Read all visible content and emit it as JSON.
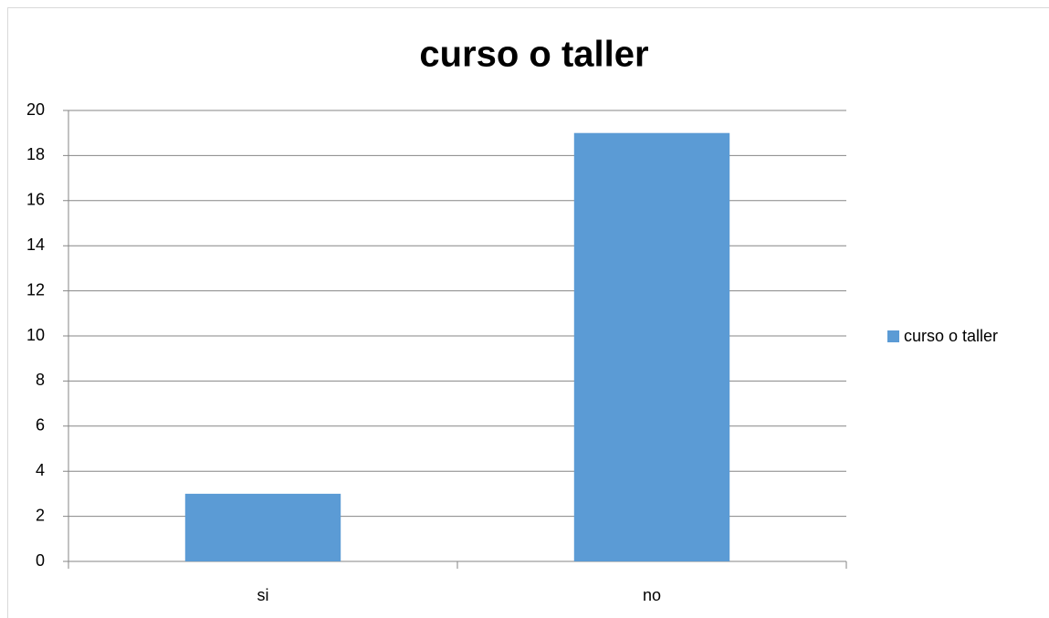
{
  "chart_data": {
    "type": "bar",
    "title": "curso o taller",
    "categories": [
      "si",
      "no"
    ],
    "series": [
      {
        "name": "curso o taller",
        "color": "#5b9bd5",
        "values": [
          3,
          19
        ]
      }
    ],
    "ylim": [
      0,
      20
    ],
    "yticks": [
      0,
      2,
      4,
      6,
      8,
      10,
      12,
      14,
      16,
      18,
      20
    ],
    "grid": true,
    "legend": "right"
  }
}
